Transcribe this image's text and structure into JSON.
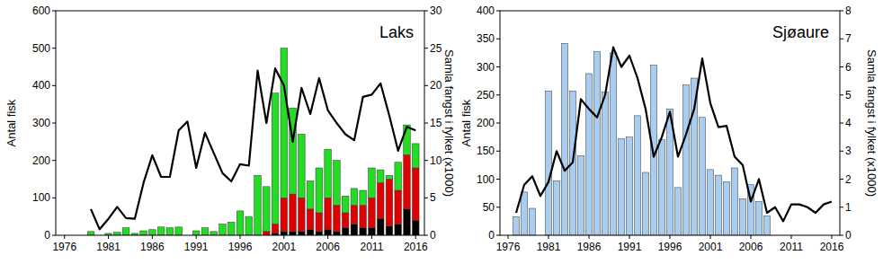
{
  "chart_data": [
    {
      "type": "bar",
      "title": "Laks",
      "stacked": true,
      "ylabel": "Antal fisk",
      "y2label": "Samla fangst i fylket (x1000)",
      "xlim": [
        1975,
        2017
      ],
      "xticks": [
        1976,
        1981,
        1986,
        1991,
        1996,
        2001,
        2006,
        2011,
        2016
      ],
      "ylim": [
        0,
        600
      ],
      "yticks": [
        0,
        100,
        200,
        300,
        400,
        500,
        600
      ],
      "y2lim": [
        0,
        30
      ],
      "y2ticks": [
        0,
        5,
        10,
        15,
        20,
        25,
        30
      ],
      "series": [
        {
          "type": "bar",
          "color": "#000000",
          "x": [
            1979,
            1980,
            1981,
            1982,
            1983,
            1984,
            1985,
            1986,
            1987,
            1988,
            1989,
            1990,
            1991,
            1992,
            1993,
            1994,
            1995,
            1996,
            1997,
            1998,
            1999,
            2000,
            2001,
            2002,
            2003,
            2004,
            2005,
            2006,
            2007,
            2008,
            2009,
            2010,
            2011,
            2012,
            2013,
            2014,
            2015,
            2016
          ],
          "values": [
            0,
            0,
            0,
            0,
            0,
            0,
            0,
            0,
            0,
            0,
            0,
            0,
            0,
            0,
            0,
            0,
            0,
            0,
            0,
            0,
            0,
            5,
            10,
            10,
            10,
            15,
            10,
            15,
            10,
            20,
            30,
            20,
            20,
            45,
            25,
            30,
            70,
            40
          ]
        },
        {
          "type": "bar",
          "color": "#e00000",
          "x": [
            1979,
            1980,
            1981,
            1982,
            1983,
            1984,
            1985,
            1986,
            1987,
            1988,
            1989,
            1990,
            1991,
            1992,
            1993,
            1994,
            1995,
            1996,
            1997,
            1998,
            1999,
            2000,
            2001,
            2002,
            2003,
            2004,
            2005,
            2006,
            2007,
            2008,
            2009,
            2010,
            2011,
            2012,
            2013,
            2014,
            2015,
            2016
          ],
          "values": [
            0,
            0,
            0,
            0,
            0,
            0,
            0,
            0,
            0,
            0,
            0,
            0,
            0,
            0,
            0,
            0,
            0,
            0,
            0,
            0,
            10,
            25,
            90,
            100,
            90,
            55,
            50,
            85,
            70,
            40,
            50,
            60,
            80,
            95,
            125,
            90,
            145,
            140
          ]
        },
        {
          "type": "bar",
          "color": "#22dd22",
          "x": [
            1979,
            1980,
            1981,
            1982,
            1983,
            1984,
            1985,
            1986,
            1987,
            1988,
            1989,
            1990,
            1991,
            1992,
            1993,
            1994,
            1995,
            1996,
            1997,
            1998,
            1999,
            2000,
            2001,
            2002,
            2003,
            2004,
            2005,
            2006,
            2007,
            2008,
            2009,
            2010,
            2011,
            2012,
            2013,
            2014,
            2015,
            2016
          ],
          "values": [
            10,
            0,
            5,
            8,
            20,
            5,
            12,
            15,
            22,
            20,
            22,
            0,
            12,
            20,
            10,
            30,
            35,
            65,
            50,
            160,
            120,
            350,
            400,
            230,
            170,
            75,
            120,
            130,
            120,
            45,
            45,
            40,
            80,
            35,
            10,
            75,
            80,
            65
          ]
        },
        {
          "type": "line",
          "axis": "y2",
          "color": "#000000",
          "x": [
            1979,
            1980,
            1981,
            1982,
            1983,
            1984,
            1985,
            1986,
            1987,
            1988,
            1989,
            1990,
            1991,
            1992,
            1993,
            1994,
            1995,
            1996,
            1997,
            1998,
            1999,
            2000,
            2001,
            2002,
            2003,
            2004,
            2005,
            2006,
            2007,
            2008,
            2009,
            2010,
            2011,
            2012,
            2013,
            2014,
            2015,
            2016
          ],
          "values": [
            3.5,
            0.8,
            2.2,
            3.8,
            2.3,
            2.2,
            7,
            10.7,
            7.8,
            7.8,
            14,
            15.2,
            9,
            13.7,
            11,
            8.3,
            7.2,
            9.5,
            9.3,
            22,
            15,
            22.3,
            20,
            12.5,
            19.7,
            16.2,
            21,
            16.7,
            15,
            13.5,
            12.7,
            18.5,
            18.8,
            20.3,
            16,
            11.3,
            14.5,
            14
          ]
        }
      ]
    },
    {
      "type": "bar",
      "title": "Sjøaure",
      "ylabel": "Antal fisk",
      "y2label": "Samla fangst i fylket (x1000)",
      "xlim": [
        1975,
        2017
      ],
      "xticks": [
        1976,
        1981,
        1986,
        1991,
        1996,
        2001,
        2006,
        2011,
        2016
      ],
      "ylim": [
        0,
        400
      ],
      "yticks": [
        0,
        50,
        100,
        150,
        200,
        250,
        300,
        350,
        400
      ],
      "y2lim": [
        0,
        8
      ],
      "y2ticks": [
        0,
        1,
        2,
        3,
        4,
        5,
        6,
        7,
        8
      ],
      "series": [
        {
          "type": "bar",
          "color": "#a9cdf0",
          "x": [
            1977,
            1978,
            1979,
            1980,
            1981,
            1982,
            1983,
            1984,
            1985,
            1986,
            1987,
            1988,
            1989,
            1990,
            1991,
            1992,
            1993,
            1994,
            1995,
            1996,
            1997,
            1998,
            1999,
            2000,
            2001,
            2002,
            2003,
            2004,
            2005,
            2006,
            2007,
            2008
          ],
          "values": [
            33,
            77,
            48,
            0,
            257,
            97,
            342,
            257,
            142,
            288,
            327,
            255,
            325,
            172,
            175,
            213,
            112,
            303,
            170,
            225,
            85,
            268,
            280,
            210,
            117,
            107,
            95,
            120,
            65,
            90,
            60,
            35
          ]
        },
        {
          "type": "line",
          "axis": "y2",
          "color": "#000000",
          "x": [
            1977,
            1978,
            1979,
            1980,
            1981,
            1982,
            1983,
            1984,
            1985,
            1986,
            1987,
            1988,
            1989,
            1990,
            1991,
            1992,
            1993,
            1994,
            1995,
            1996,
            1997,
            1998,
            1999,
            2000,
            2001,
            2002,
            2003,
            2004,
            2005,
            2006,
            2007,
            2008,
            2009,
            2010,
            2011,
            2012,
            2013,
            2014,
            2015,
            2016
          ],
          "values": [
            0.8,
            1.8,
            2.1,
            1.4,
            1.9,
            3.0,
            2.3,
            2.6,
            4.85,
            4.5,
            4.2,
            5.0,
            6.7,
            6.0,
            6.4,
            5.6,
            4.5,
            2.8,
            3.5,
            4.4,
            2.8,
            3.6,
            4.5,
            6.3,
            4.7,
            3.85,
            3.9,
            2.8,
            2.5,
            1.2,
            2.0,
            0.8,
            1.0,
            0.5,
            1.1,
            1.1,
            1.0,
            0.8,
            1.1,
            1.2
          ]
        }
      ]
    }
  ]
}
